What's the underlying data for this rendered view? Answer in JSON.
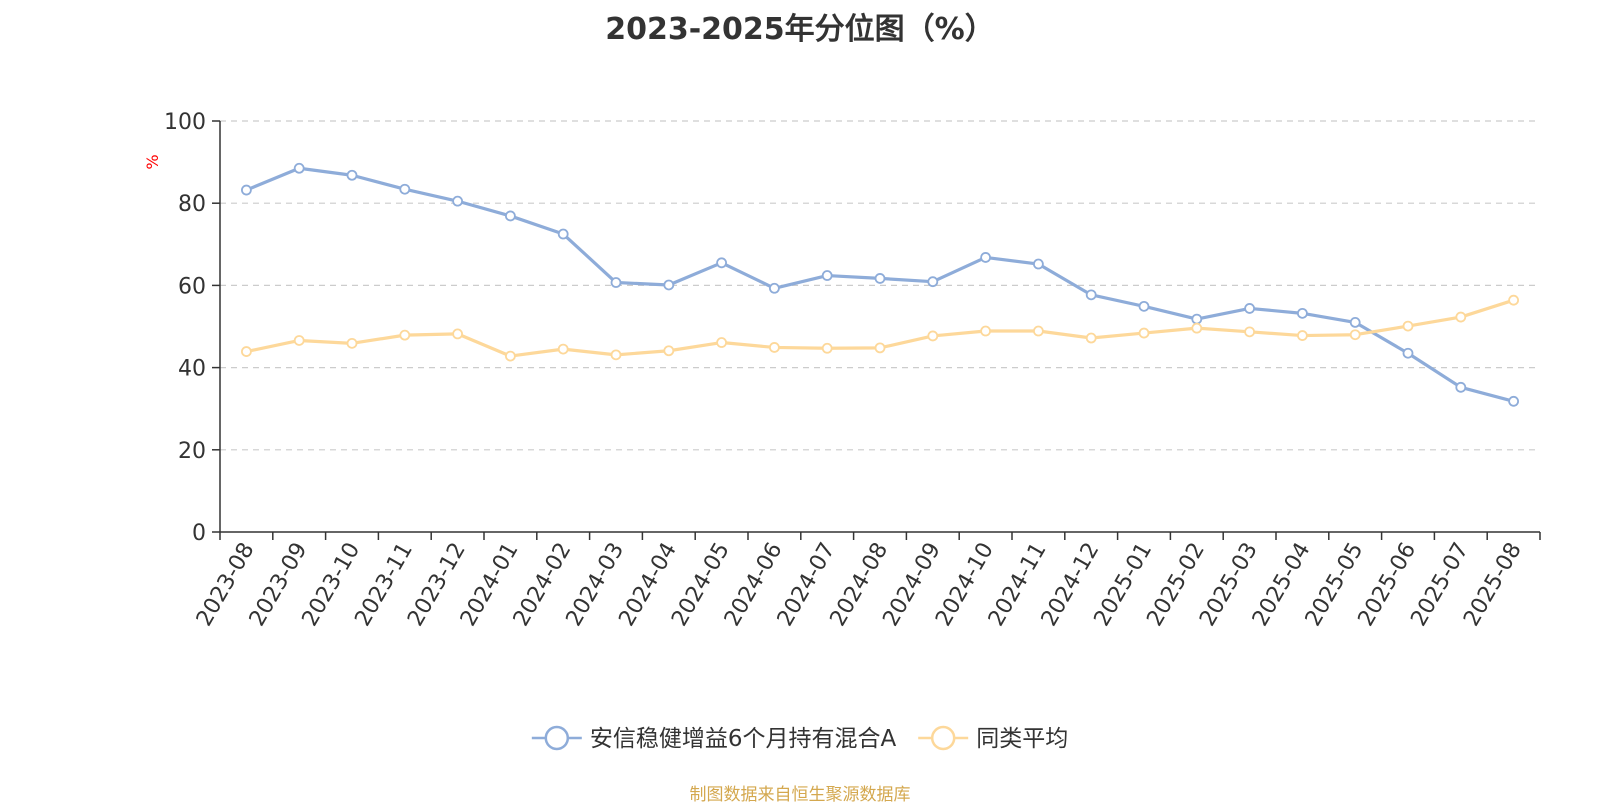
{
  "chart_data": {
    "type": "line",
    "title": "2023-2025年分位图（%）",
    "ylabel": "%",
    "ylim": [
      0,
      100
    ],
    "yticks": [
      "0",
      "20",
      "40",
      "60",
      "80",
      "100"
    ],
    "grid": true,
    "legend_position": "bottom",
    "categories": [
      "2023-08",
      "2023-09",
      "2023-10",
      "2023-11",
      "2023-12",
      "2024-01",
      "2024-02",
      "2024-03",
      "2024-04",
      "2024-05",
      "2024-06",
      "2024-07",
      "2024-08",
      "2024-09",
      "2024-10",
      "2024-11",
      "2024-12",
      "2025-01",
      "2025-02",
      "2025-03",
      "2025-04",
      "2025-05",
      "2025-06",
      "2025-07",
      "2025-08"
    ],
    "series": [
      {
        "name": "安信稳健增益6个月持有混合A",
        "color": "#8eacd9",
        "values": [
          83.2,
          88.5,
          86.8,
          83.4,
          80.5,
          76.9,
          72.5,
          60.7,
          60.1,
          65.5,
          59.3,
          62.4,
          61.7,
          60.9,
          66.8,
          65.2,
          57.7,
          54.9,
          51.8,
          54.4,
          53.2,
          51.0,
          43.5,
          35.2,
          31.8
        ]
      },
      {
        "name": "同类平均",
        "color": "#fdd89a",
        "values": [
          43.9,
          46.6,
          45.9,
          47.9,
          48.2,
          42.8,
          44.5,
          43.1,
          44.1,
          46.1,
          44.9,
          44.7,
          44.8,
          47.7,
          48.9,
          48.9,
          47.2,
          48.4,
          49.6,
          48.7,
          47.8,
          48.0,
          50.1,
          52.3,
          56.4
        ]
      }
    ]
  },
  "footer": {
    "text": "制图数据来自恒生聚源数据库",
    "color": "#d4a84f"
  },
  "colors": {
    "axis": "#333333",
    "grid": "#cccccc",
    "ylabel": "#ff0000",
    "title": "#333333"
  }
}
